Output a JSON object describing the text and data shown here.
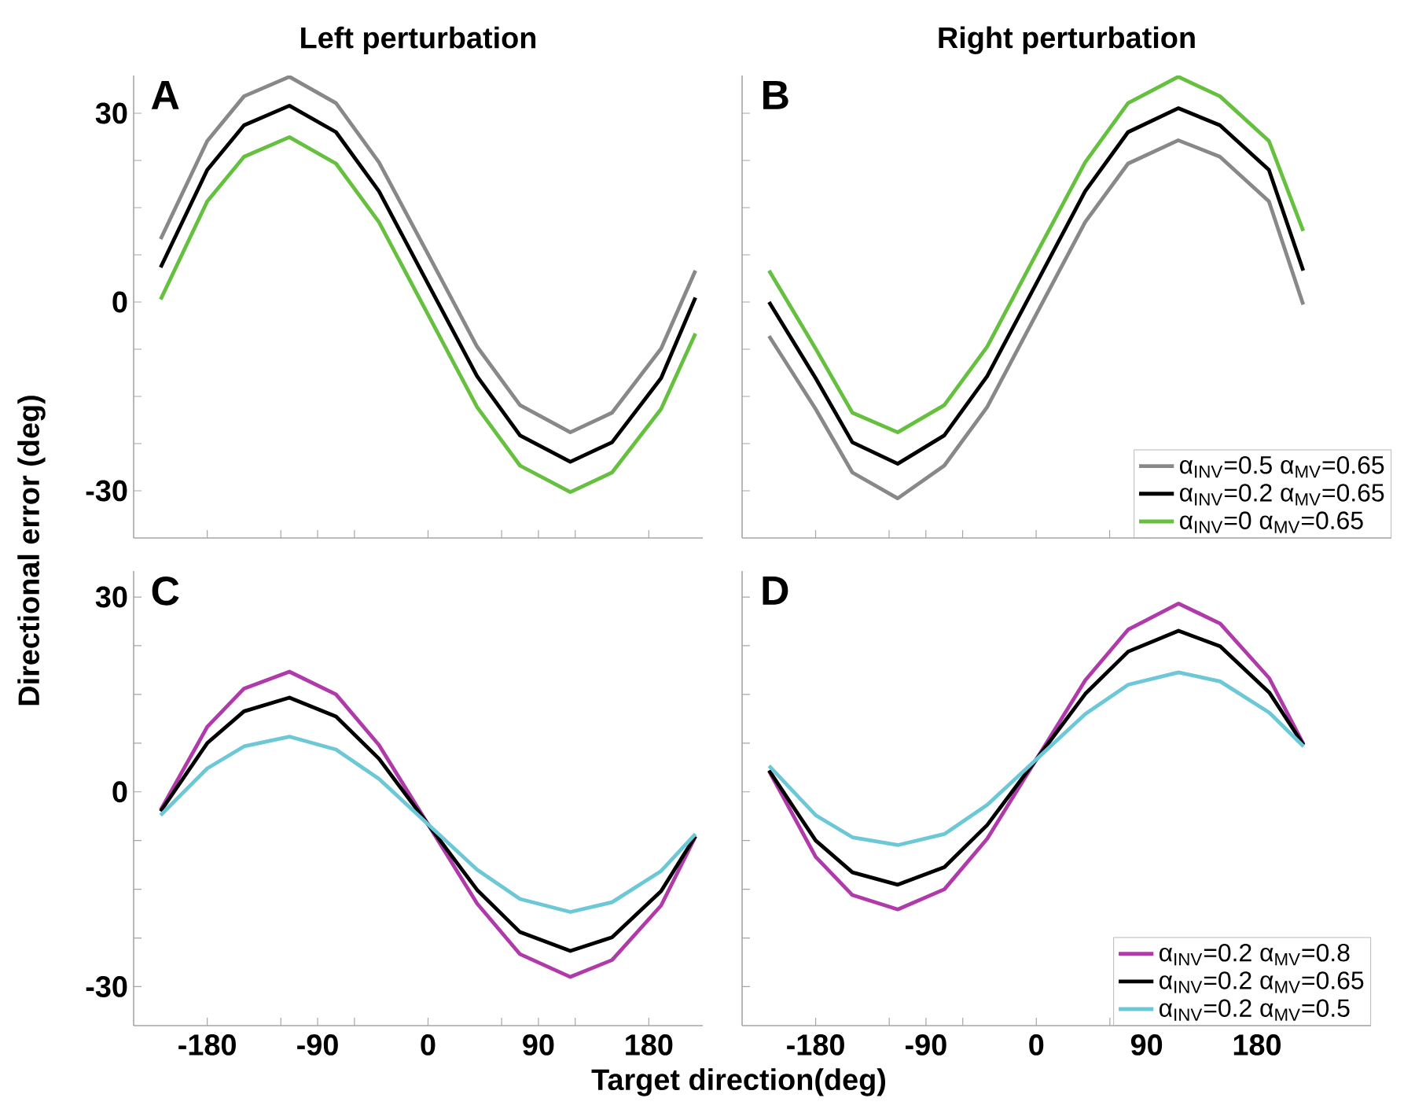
{
  "chart_data": [
    {
      "type": "line",
      "title": "Left perturbation",
      "ylabel": "Directional error (deg)",
      "annotations": [
        "A"
      ],
      "line_style": "solid",
      "tick_labels": "y",
      "x": [
        -218,
        -180,
        -150,
        -113,
        -75,
        -40,
        0,
        40,
        75,
        116,
        150,
        190,
        218
      ],
      "xlim": [
        -240,
        224
      ],
      "ylim": [
        -37.5,
        36
      ],
      "xticks": [
        -180,
        {
          "value": -120,
          "label": null
        },
        -90,
        {
          "value": -60,
          "label": null
        },
        0,
        {
          "value": 60,
          "label": null
        },
        90,
        {
          "value": 120,
          "label": null
        },
        180
      ],
      "yticks": [
        -30,
        {
          "value": -22.5,
          "label": null
        },
        {
          "value": -15,
          "label": null
        },
        {
          "value": -7.5,
          "label": null
        },
        0,
        {
          "value": 7.5,
          "label": null
        },
        {
          "value": 15,
          "label": null
        },
        {
          "value": 22.5,
          "label": null
        },
        30
      ],
      "series": [
        {
          "color": "#888888",
          "values": [
            10,
            25.6,
            32.7,
            35.8,
            31.6,
            22.2,
            7.6,
            -7.1,
            -16.4,
            -20.7,
            -17.6,
            -7.4,
            5
          ]
        },
        {
          "color": "#000000",
          "values": [
            5.5,
            21.0,
            28.1,
            31.2,
            27.0,
            17.6,
            2.9,
            -11.8,
            -21.2,
            -25.4,
            -22.3,
            -12.1,
            0.7
          ]
        },
        {
          "color": "#66c03f",
          "values": [
            0.4,
            16.0,
            23.1,
            26.2,
            22.0,
            12.7,
            -2.0,
            -16.7,
            -26.0,
            -30.2,
            -27.1,
            -17.0,
            -5
          ]
        }
      ]
    },
    {
      "type": "line",
      "title": "Right perturbation",
      "annotations": [
        "B"
      ],
      "line_style": "solid",
      "tick_labels": false,
      "legend": "bottom right",
      "x": [
        -218,
        -180,
        -150,
        -113,
        -75,
        -40,
        0,
        40,
        75,
        116,
        150,
        190,
        218
      ],
      "xlim": [
        -240,
        290
      ],
      "ylim": [
        -37.5,
        36
      ],
      "xticks": [
        -180,
        {
          "value": -120,
          "label": null
        },
        -90,
        {
          "value": -60,
          "label": null
        },
        0,
        {
          "value": 60,
          "label": null
        },
        90,
        {
          "value": 120,
          "label": null
        },
        180
      ],
      "yticks": [
        -30,
        {
          "value": -22.5,
          "label": null
        },
        {
          "value": -15,
          "label": null
        },
        {
          "value": -7.5,
          "label": null
        },
        0,
        {
          "value": 7.5,
          "label": null
        },
        {
          "value": 15,
          "label": null
        },
        {
          "value": 22.5,
          "label": null
        },
        30
      ],
      "series": [
        {
          "name": "α$_{INV}$=0.5   α$_{MV}$=0.65",
          "color": "#888888",
          "values": [
            -5.4,
            -17.0,
            -27.1,
            -31.2,
            -26.0,
            -16.7,
            -2.0,
            12.7,
            22.0,
            25.7,
            23.1,
            16.0,
            -0.4
          ]
        },
        {
          "name": "α$_{INV}$=0.2   α$_{MV}$=0.65",
          "color": "#000000",
          "values": [
            0.0,
            -12.1,
            -22.3,
            -25.7,
            -21.2,
            -11.8,
            2.9,
            17.6,
            27.0,
            30.8,
            28.1,
            21.0,
            5.0
          ]
        },
        {
          "name": "α$_{INV}$=0     α$_{MV}$=0.65",
          "color": "#66c03f",
          "values": [
            5.0,
            -7.4,
            -17.6,
            -20.7,
            -16.4,
            -7.1,
            7.6,
            22.2,
            31.6,
            35.8,
            32.7,
            25.6,
            11.3
          ]
        }
      ]
    },
    {
      "type": "line",
      "xlabel": "Target direction(deg)",
      "annotations": [
        "C"
      ],
      "line_style": "solid",
      "x": [
        -218,
        -180,
        -150,
        -113,
        -75,
        -40,
        0,
        40,
        75,
        116,
        150,
        190,
        218
      ],
      "xlim": [
        -240,
        224
      ],
      "ylim": [
        -36,
        34
      ],
      "xticks": [
        -180,
        {
          "value": -120,
          "label": null
        },
        -90,
        {
          "value": -60,
          "label": null
        },
        0,
        {
          "value": 60,
          "label": null
        },
        90,
        {
          "value": 120,
          "label": null
        },
        180
      ],
      "yticks": [
        -30,
        {
          "value": -22.5,
          "label": null
        },
        {
          "value": -15,
          "label": null
        },
        {
          "value": -7.5,
          "label": null
        },
        0,
        {
          "value": 7.5,
          "label": null
        },
        {
          "value": 15,
          "label": null
        },
        {
          "value": 22.5,
          "label": null
        },
        30
      ],
      "series": [
        {
          "color": "#b03aa9",
          "values": [
            -2.8,
            10.0,
            15.9,
            18.5,
            15.0,
            7.2,
            -5,
            -17.2,
            -25.0,
            -28.5,
            -25.9,
            -17.5,
            -6.9
          ]
        },
        {
          "color": "#000000",
          "values": [
            -3.0,
            7.5,
            12.4,
            14.5,
            11.6,
            5.1,
            -5,
            -15.1,
            -21.6,
            -24.5,
            -22.4,
            -15.3,
            -6.8
          ]
        },
        {
          "color": "#6cc8d6",
          "values": [
            -3.6,
            3.6,
            7.0,
            8.5,
            6.5,
            2.0,
            -5,
            -12.0,
            -16.5,
            -18.5,
            -17.0,
            -12.2,
            -6.5
          ]
        }
      ]
    },
    {
      "type": "line",
      "annotations": [
        "D"
      ],
      "line_style": "solid",
      "tick_labels": "x",
      "legend": "bottom right",
      "x": [
        -218,
        -180,
        -150,
        -113,
        -75,
        -40,
        0,
        40,
        75,
        116,
        150,
        190,
        218
      ],
      "xlim": [
        -240,
        273
      ],
      "ylim": [
        -36,
        34
      ],
      "xticks": [
        -180,
        {
          "value": -120,
          "label": null
        },
        -90,
        {
          "value": -60,
          "label": null
        },
        0,
        {
          "value": 60,
          "label": null
        },
        90,
        {
          "value": 120,
          "label": null
        },
        180
      ],
      "yticks": [
        -30,
        {
          "value": -22.5,
          "label": null
        },
        {
          "value": -15,
          "label": null
        },
        {
          "value": -7.5,
          "label": null
        },
        0,
        {
          "value": 7.5,
          "label": null
        },
        {
          "value": 15,
          "label": null
        },
        {
          "value": 22.5,
          "label": null
        },
        30
      ],
      "series": [
        {
          "name": "α$_{INV}$=0.2   α$_{MV}$=0.8",
          "color": "#b03aa9",
          "values": [
            3.2,
            -10.0,
            -15.9,
            -18.1,
            -15.0,
            -7.2,
            5,
            17.2,
            25.0,
            29.0,
            25.9,
            17.5,
            7.3
          ]
        },
        {
          "name": "α$_{INV}$=0.2   α$_{MV}$=0.65",
          "color": "#000000",
          "values": [
            3.3,
            -7.5,
            -12.4,
            -14.3,
            -11.6,
            -5.1,
            5,
            15.1,
            21.6,
            24.8,
            22.4,
            15.3,
            7.2
          ]
        },
        {
          "name": "α$_{INV}$=0.2   α$_{MV}$=0.5",
          "color": "#6cc8d6",
          "values": [
            4.0,
            -3.6,
            -7.0,
            -8.2,
            -6.5,
            -2.0,
            5,
            12.0,
            16.5,
            18.4,
            17.0,
            12.2,
            7.0
          ]
        }
      ]
    }
  ]
}
